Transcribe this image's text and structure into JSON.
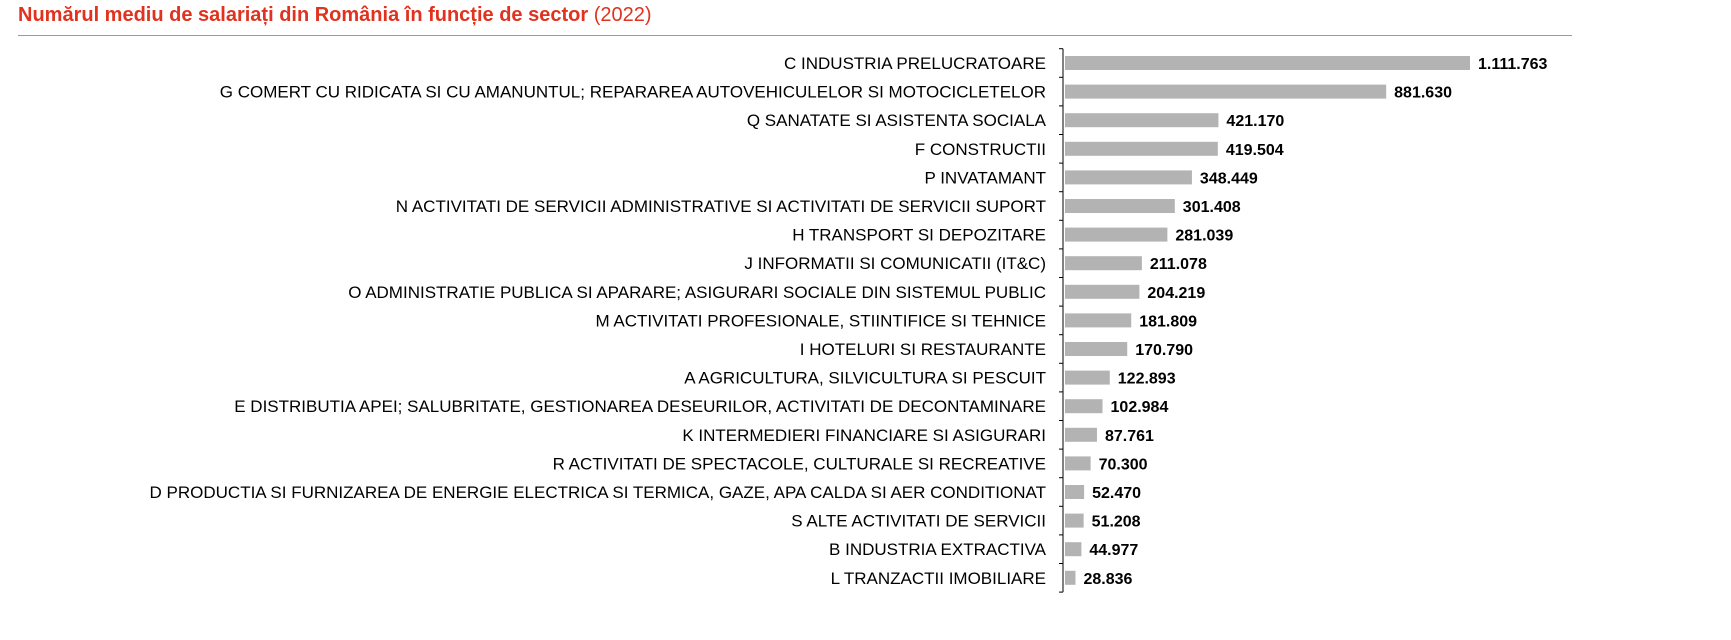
{
  "title": {
    "main": "Numărul mediu de salariați din România în funcție de sector",
    "suffix": "(2022)"
  },
  "colors": {
    "title": "#e0321e",
    "bar": "#b3b3b3",
    "axis": "#000000"
  },
  "chart_data": {
    "type": "bar",
    "orientation": "horizontal",
    "title": "Numărul mediu de salariați din România în funcție de sector (2022)",
    "xlabel": "",
    "ylabel": "",
    "grid": false,
    "legend": "none",
    "xlim": [
      0,
      1111763
    ],
    "categories": [
      "C INDUSTRIA PRELUCRATOARE",
      "G COMERT CU RIDICATA SI CU AMANUNTUL; REPARAREA AUTOVEHICULELOR SI MOTOCICLETELOR",
      "Q SANATATE SI ASISTENTA SOCIALA",
      "F CONSTRUCTII",
      "P INVATAMANT",
      "N ACTIVITATI DE SERVICII ADMINISTRATIVE SI ACTIVITATI DE SERVICII SUPORT",
      "H TRANSPORT SI DEPOZITARE",
      "J INFORMATII SI COMUNICATII (IT&C)",
      "O ADMINISTRATIE PUBLICA SI APARARE; ASIGURARI SOCIALE DIN SISTEMUL PUBLIC",
      "M ACTIVITATI PROFESIONALE, STIINTIFICE SI TEHNICE",
      "I HOTELURI SI RESTAURANTE",
      "A AGRICULTURA, SILVICULTURA SI PESCUIT",
      "E DISTRIBUTIA APEI; SALUBRITATE, GESTIONAREA DESEURILOR, ACTIVITATI DE DECONTAMINARE",
      "K INTERMEDIERI FINANCIARE SI ASIGURARI",
      "R ACTIVITATI DE SPECTACOLE, CULTURALE SI RECREATIVE",
      "D PRODUCTIA SI FURNIZAREA DE ENERGIE ELECTRICA SI TERMICA, GAZE, APA CALDA SI AER CONDITIONAT",
      "S ALTE ACTIVITATI DE SERVICII",
      "B INDUSTRIA EXTRACTIVA",
      "L TRANZACTII IMOBILIARE"
    ],
    "values": [
      1111763,
      881630,
      421170,
      419504,
      348449,
      301408,
      281039,
      211078,
      204219,
      181809,
      170790,
      122893,
      102984,
      87761,
      70300,
      52470,
      51208,
      44977,
      28836
    ],
    "value_labels": [
      "1.111.763",
      "881.630",
      "421.170",
      "419.504",
      "348.449",
      "301.408",
      "281.039",
      "211.078",
      "204.219",
      "181.809",
      "170.790",
      "122.893",
      "102.984",
      "87.761",
      "70.300",
      "52.470",
      "51.208",
      "44.977",
      "28.836"
    ]
  }
}
